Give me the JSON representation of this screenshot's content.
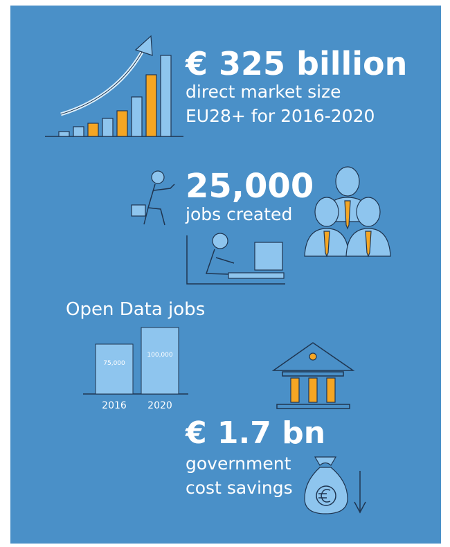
{
  "stats": [
    {
      "headline": "€ 325 billion",
      "caption_lines": [
        "direct market size",
        "EU28+ for 2016-2020"
      ]
    },
    {
      "headline": "25,000",
      "caption_lines": [
        "jobs created"
      ]
    },
    {
      "headline": "€ 1.7 bn",
      "caption_lines": [
        "government",
        "cost savings"
      ]
    }
  ],
  "open_data_jobs": {
    "type": "bar",
    "title": "Open Data jobs",
    "categories": [
      "2016",
      "2020"
    ],
    "values": [
      75000,
      100000
    ],
    "value_labels": [
      "75,000",
      "100,000"
    ],
    "color": "#8ec5ee"
  }
}
